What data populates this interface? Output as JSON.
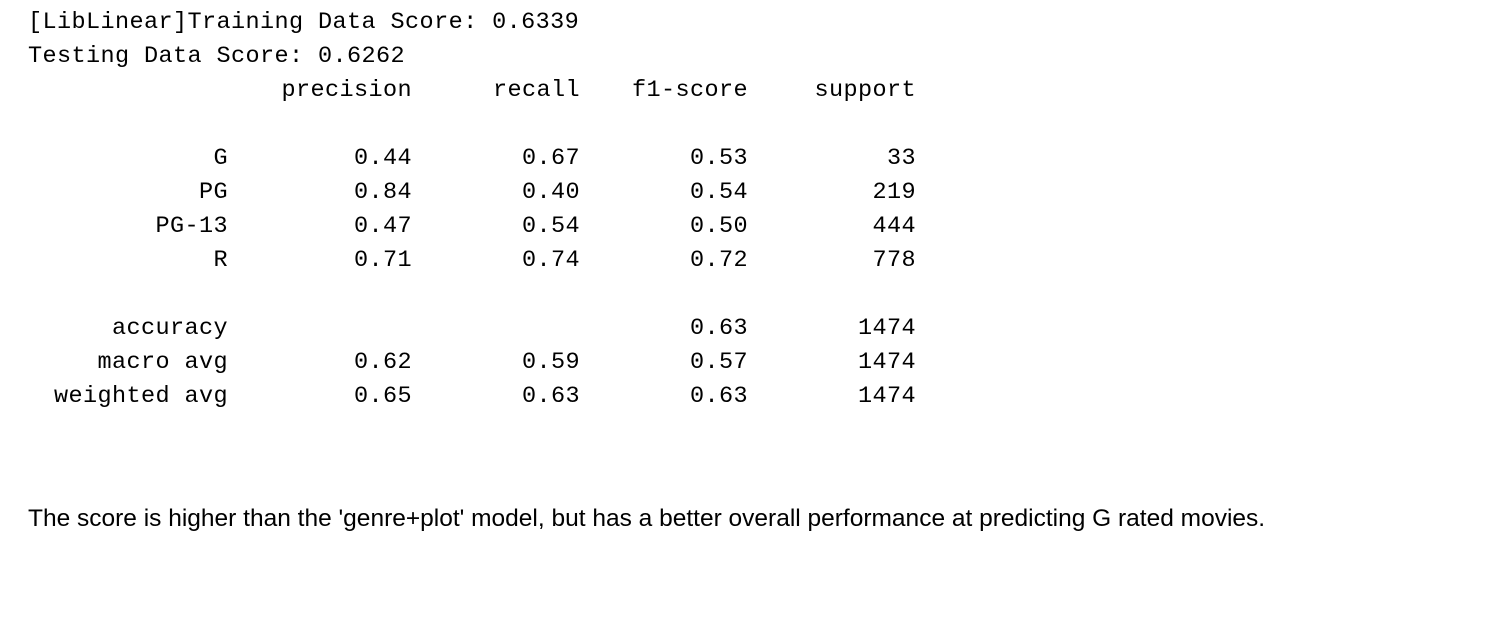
{
  "output": {
    "training_line": "[LibLinear]Training Data Score: 0.6339",
    "testing_line": "Testing Data Score: 0.6262"
  },
  "report": {
    "headers": [
      "precision",
      "recall",
      "f1-score",
      "support"
    ],
    "classes": [
      {
        "label": "G",
        "precision": "0.44",
        "recall": "0.67",
        "f1": "0.53",
        "support": "33"
      },
      {
        "label": "PG",
        "precision": "0.84",
        "recall": "0.40",
        "f1": "0.54",
        "support": "219"
      },
      {
        "label": "PG-13",
        "precision": "0.47",
        "recall": "0.54",
        "f1": "0.50",
        "support": "444"
      },
      {
        "label": "R",
        "precision": "0.71",
        "recall": "0.74",
        "f1": "0.72",
        "support": "778"
      }
    ],
    "summary": [
      {
        "label": "accuracy",
        "precision": "",
        "recall": "",
        "f1": "0.63",
        "support": "1474"
      },
      {
        "label": "macro avg",
        "precision": "0.62",
        "recall": "0.59",
        "f1": "0.57",
        "support": "1474"
      },
      {
        "label": "weighted avg",
        "precision": "0.65",
        "recall": "0.63",
        "f1": "0.63",
        "support": "1474"
      }
    ]
  },
  "markdown": {
    "text": "The score is higher than the 'genre+plot' model, but has a better overall performance at predicting G rated movies."
  }
}
